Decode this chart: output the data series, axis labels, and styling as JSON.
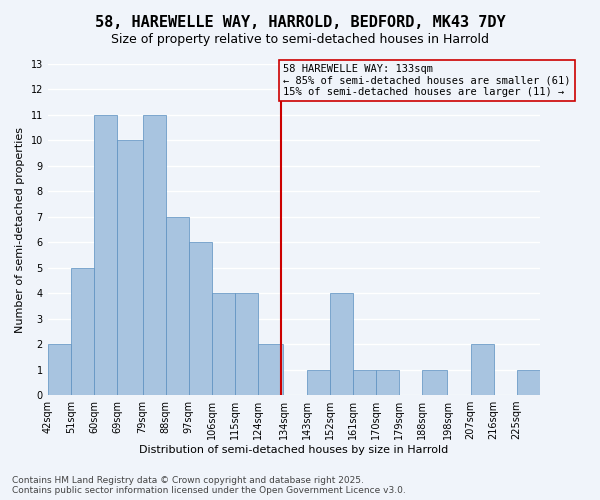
{
  "title": "58, HAREWELLE WAY, HARROLD, BEDFORD, MK43 7DY",
  "subtitle": "Size of property relative to semi-detached houses in Harrold",
  "xlabel": "Distribution of semi-detached houses by size in Harrold",
  "ylabel": "Number of semi-detached properties",
  "bins": [
    42,
    51,
    60,
    69,
    79,
    88,
    97,
    106,
    115,
    124,
    134,
    143,
    152,
    161,
    170,
    179,
    188,
    198,
    207,
    216,
    225
  ],
  "bin_labels": [
    "42sqm",
    "51sqm",
    "60sqm",
    "69sqm",
    "79sqm",
    "88sqm",
    "97sqm",
    "106sqm",
    "115sqm",
    "124sqm",
    "134sqm",
    "143sqm",
    "152sqm",
    "161sqm",
    "170sqm",
    "179sqm",
    "188sqm",
    "198sqm",
    "207sqm",
    "216sqm",
    "225sqm"
  ],
  "counts": [
    2,
    5,
    11,
    10,
    11,
    7,
    6,
    4,
    4,
    2,
    0,
    1,
    4,
    1,
    1,
    0,
    1,
    0,
    2,
    0,
    1
  ],
  "bar_color": "#a8c4e0",
  "bar_edge_color": "#5a8fc0",
  "property_size": 133,
  "vline_color": "#cc0000",
  "annotation_box_color": "#cc0000",
  "annotation_text": "58 HAREWELLE WAY: 133sqm\n← 85% of semi-detached houses are smaller (61)\n15% of semi-detached houses are larger (11) →",
  "ylim": [
    0,
    13
  ],
  "yticks": [
    0,
    1,
    2,
    3,
    4,
    5,
    6,
    7,
    8,
    9,
    10,
    11,
    12,
    13
  ],
  "footer_text": "Contains HM Land Registry data © Crown copyright and database right 2025.\nContains public sector information licensed under the Open Government Licence v3.0.",
  "bg_color": "#f0f4fa",
  "grid_color": "#ffffff",
  "title_fontsize": 11,
  "subtitle_fontsize": 9,
  "axis_label_fontsize": 8,
  "tick_fontsize": 7,
  "annotation_fontsize": 7.5,
  "footer_fontsize": 6.5
}
